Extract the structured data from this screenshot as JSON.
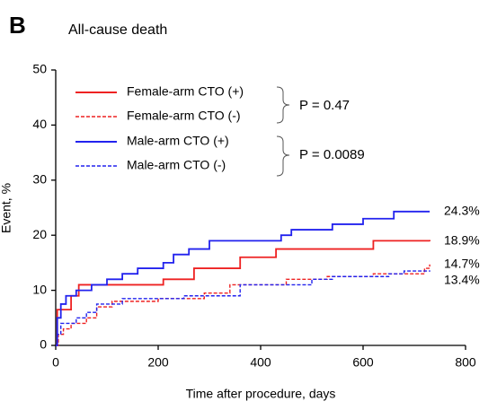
{
  "chart_data": {
    "type": "line",
    "step": "post",
    "panel_label": "B",
    "title": "All-cause death",
    "x_label": "Time after procedure, days",
    "y_label": "Event, %",
    "xlim": [
      0,
      800
    ],
    "xticks": [
      0,
      200,
      400,
      600,
      800
    ],
    "ylim": [
      0,
      50
    ],
    "yticks": [
      0,
      10,
      20,
      30,
      40,
      50
    ],
    "grid": false,
    "series": [
      {
        "name": "Female-arm CTO (+)",
        "color": "#ee2222",
        "dash": false,
        "x": [
          0,
          3,
          30,
          45,
          210,
          270,
          360,
          430,
          620,
          730
        ],
        "values": [
          0,
          6.5,
          9,
          11,
          12,
          14,
          16,
          17.5,
          19,
          18.9
        ],
        "end_value": 18.9,
        "end_label": "18.9%"
      },
      {
        "name": "Female-arm CTO (-)",
        "color": "#ee2222",
        "dash": true,
        "x": [
          0,
          5,
          15,
          30,
          60,
          80,
          110,
          200,
          290,
          340,
          450,
          530,
          620,
          720,
          730
        ],
        "values": [
          0,
          2,
          3,
          4,
          5,
          7,
          8,
          8.5,
          9.5,
          11,
          12,
          12.5,
          13,
          14,
          14.7
        ],
        "end_value": 14.7,
        "end_label": "14.7%"
      },
      {
        "name": "Male-arm CTO (+)",
        "color": "#2222ee",
        "dash": false,
        "x": [
          0,
          3,
          10,
          20,
          40,
          70,
          100,
          130,
          160,
          210,
          230,
          260,
          300,
          440,
          460,
          540,
          600,
          660,
          730
        ],
        "values": [
          0,
          5,
          7.5,
          9,
          10,
          11,
          12,
          13,
          14,
          15,
          16.5,
          17.5,
          19,
          20,
          21,
          22,
          23,
          24.3,
          24.3
        ],
        "end_value": 24.3,
        "end_label": "24.3%"
      },
      {
        "name": "Male-arm CTO (-)",
        "color": "#2222ee",
        "dash": true,
        "x": [
          0,
          3,
          10,
          40,
          60,
          80,
          130,
          250,
          360,
          500,
          540,
          650,
          680,
          730
        ],
        "values": [
          0,
          2,
          4,
          5,
          6,
          7.5,
          8.5,
          9,
          11,
          12,
          12.5,
          13,
          13.5,
          13.4
        ],
        "end_value": 13.4,
        "end_label": "13.4%"
      }
    ],
    "annotations": [
      "P = 0.47",
      "P = 0.0089"
    ]
  }
}
